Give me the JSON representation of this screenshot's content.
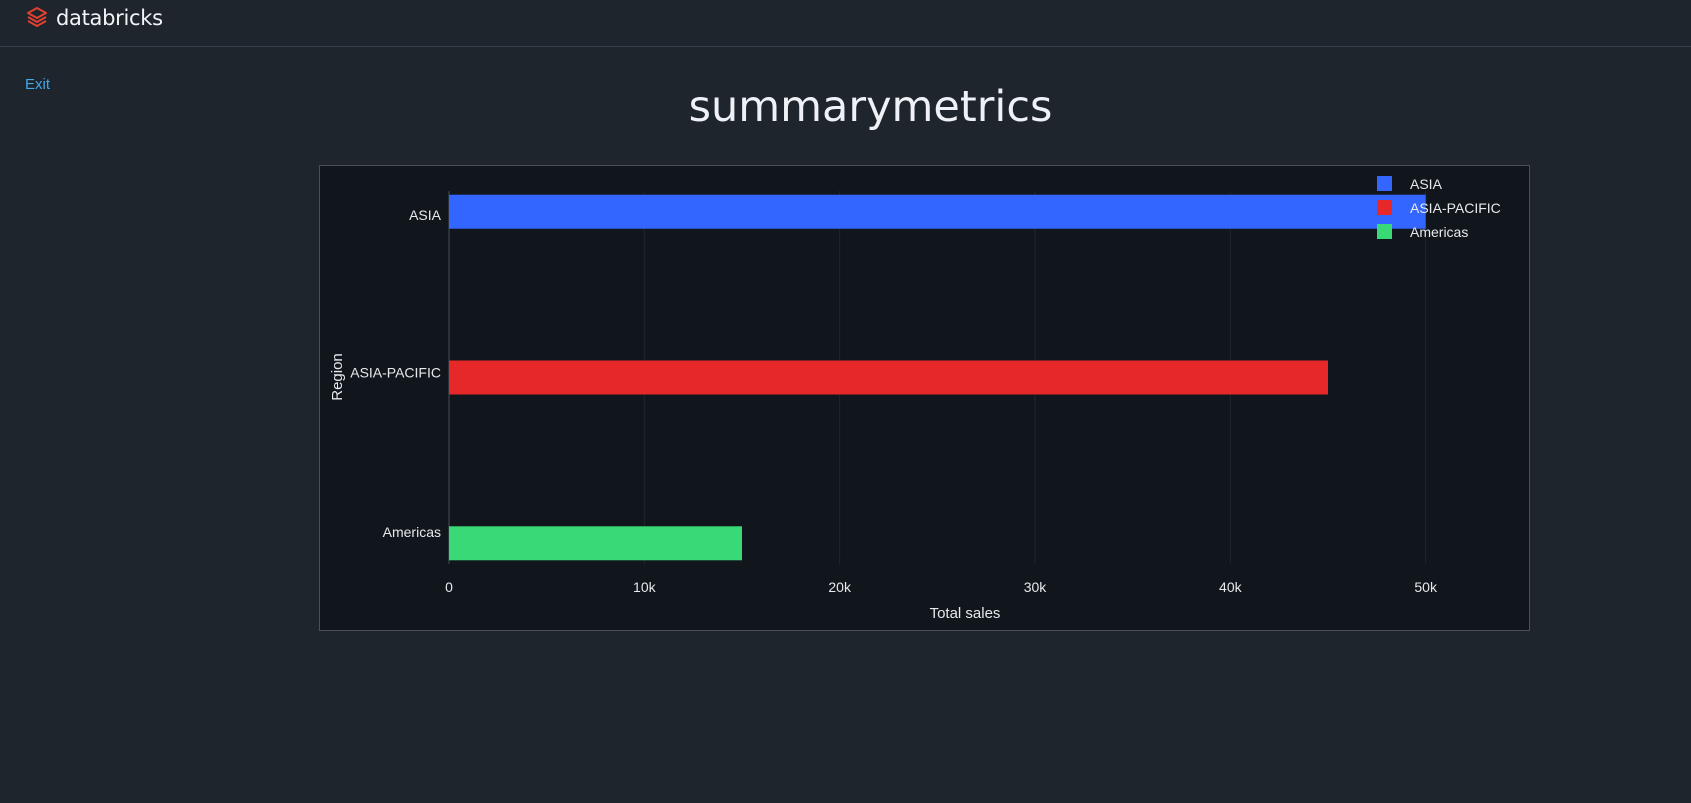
{
  "brand": {
    "name": "databricks",
    "icon": "databricks-logo-icon",
    "color": "#e4402f"
  },
  "nav": {
    "exit_label": "Exit"
  },
  "page": {
    "title": "summarymetrics"
  },
  "chart_data": {
    "type": "bar",
    "orientation": "horizontal",
    "categories": [
      "ASIA",
      "ASIA-PACIFIC",
      "Americas"
    ],
    "series": [
      {
        "name": "ASIA",
        "values": [
          50000,
          null,
          null
        ],
        "color": "#3366ff"
      },
      {
        "name": "ASIA-PACIFIC",
        "values": [
          null,
          45000,
          null
        ],
        "color": "#e62828"
      },
      {
        "name": "Americas",
        "values": [
          null,
          null,
          15000
        ],
        "color": "#39d975"
      }
    ],
    "xlabel": "Total sales",
    "ylabel": "Region",
    "xlim": [
      0,
      60000
    ],
    "x_ticks": [
      0,
      10000,
      20000,
      30000,
      40000,
      50000
    ],
    "x_tick_labels": [
      "0",
      "10k",
      "20k",
      "30k",
      "40k",
      "50k"
    ],
    "grid": "vertical",
    "legend_position": "top-right"
  }
}
